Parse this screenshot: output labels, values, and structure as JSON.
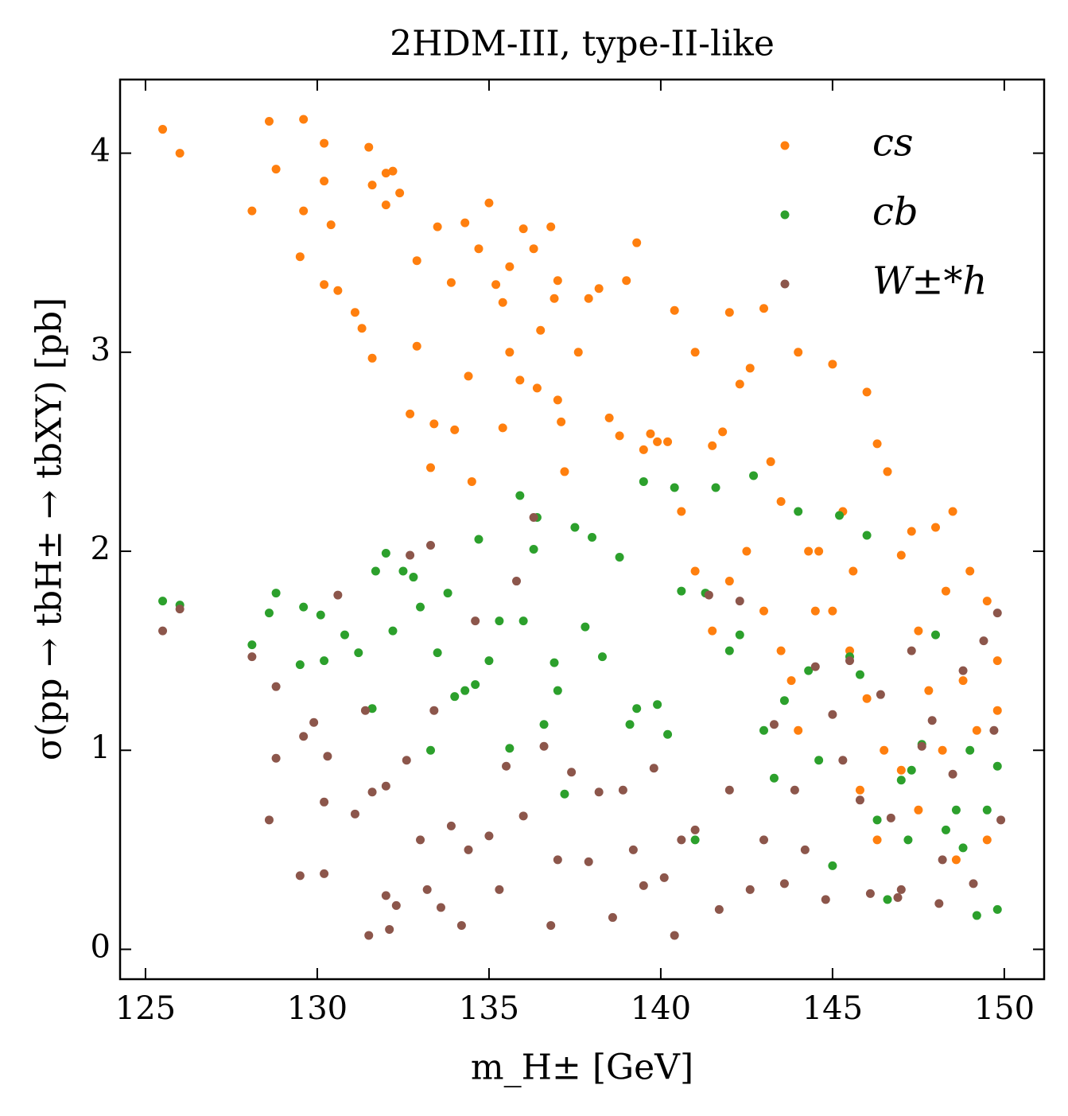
{
  "chart_data": {
    "type": "scatter",
    "title": "2HDM-III, type-II-like",
    "x_label": "m_H± [GeV]",
    "y_label": "σ(pp → tbH± → tbXY) [pb]",
    "xlim": [
      124.26,
      151.16
    ],
    "ylim": [
      -0.15,
      4.37
    ],
    "xticks": [
      125,
      130,
      135,
      140,
      145,
      150
    ],
    "yticks": [
      0,
      1,
      2,
      3,
      4
    ],
    "legend": "upper right",
    "series": [
      {
        "name": "cs",
        "color": "#ff7f0e",
        "x": [
          125.5,
          126,
          128.1,
          128.6,
          128.8,
          129.6,
          129.6,
          129.5,
          130.2,
          130.2,
          130.2,
          130.4,
          130.6,
          131.1,
          131.3,
          131.5,
          131.6,
          131.6,
          132,
          132,
          132.2,
          132.4,
          132.7,
          132.9,
          132.9,
          133.3,
          133.4,
          133.5,
          133.9,
          134,
          134.3,
          134.5,
          134.4,
          134.7,
          135,
          135.2,
          135.4,
          135.4,
          135.6,
          135.6,
          135.9,
          136,
          136.3,
          136.4,
          136.5,
          136.8,
          136.9,
          137,
          137,
          137.1,
          137.2,
          137.6,
          137.9,
          138.2,
          138.5,
          138.8,
          139,
          139.3,
          139.5,
          139.7,
          139.9,
          140.2,
          140.4,
          140.6,
          141,
          141.5,
          141.8,
          142,
          142.3,
          142.6,
          143,
          143.2,
          143.5,
          144,
          144.3,
          144.6,
          145,
          145.3,
          145.6,
          146,
          146.3,
          146.6,
          147,
          147.3,
          147.5,
          148,
          148.3,
          148.5,
          149,
          149.5,
          149.8,
          149.8,
          149.2,
          148.8,
          148.2,
          147.8,
          147,
          146.5,
          146,
          145.5,
          145,
          144.5,
          144,
          143.5,
          143,
          142.5,
          141.5,
          141,
          142,
          143.8,
          145.8,
          147.5,
          149.5,
          148.6,
          146.3
        ],
        "values": [
          4.12,
          4.0,
          3.71,
          4.16,
          3.92,
          4.17,
          3.71,
          3.48,
          3.86,
          4.05,
          3.34,
          3.64,
          3.31,
          3.2,
          3.12,
          4.03,
          2.97,
          3.84,
          3.9,
          3.74,
          3.91,
          3.8,
          2.69,
          3.46,
          3.03,
          2.42,
          2.64,
          3.63,
          3.35,
          2.61,
          3.65,
          2.35,
          2.88,
          3.52,
          3.75,
          3.34,
          3.25,
          2.62,
          3.43,
          3.0,
          2.86,
          3.62,
          3.52,
          2.82,
          3.11,
          3.63,
          3.27,
          3.36,
          2.76,
          2.65,
          2.4,
          3.0,
          3.27,
          3.32,
          2.67,
          2.58,
          3.36,
          3.55,
          2.51,
          2.59,
          2.55,
          2.55,
          3.21,
          2.2,
          3.0,
          2.53,
          2.6,
          3.2,
          2.84,
          2.92,
          3.22,
          2.45,
          2.25,
          3.0,
          2.0,
          2.0,
          2.94,
          2.2,
          1.9,
          2.8,
          2.54,
          2.4,
          1.98,
          2.1,
          1.6,
          2.12,
          1.8,
          2.2,
          1.9,
          1.75,
          1.2,
          1.45,
          1.1,
          1.35,
          1.0,
          1.3,
          0.9,
          1.0,
          1.26,
          1.5,
          1.7,
          1.7,
          1.1,
          1.5,
          1.7,
          2.0,
          1.6,
          1.9,
          1.85,
          1.35,
          0.8,
          0.7,
          0.55,
          0.45,
          0.55
        ]
      },
      {
        "name": "cb",
        "color": "#2ca02c",
        "x": [
          125.5,
          126,
          128.1,
          128.6,
          128.8,
          129.5,
          129.6,
          130.1,
          130.2,
          130.8,
          131.2,
          131.6,
          131.7,
          132,
          132.2,
          132.5,
          132.8,
          133,
          133.3,
          133.5,
          133.8,
          134,
          134.3,
          134.6,
          134.7,
          135,
          135.3,
          135.6,
          135.9,
          136,
          136.3,
          136.4,
          136.6,
          136.9,
          137,
          137.2,
          137.5,
          137.8,
          138,
          138.3,
          138.8,
          139.1,
          139.3,
          139.5,
          139.9,
          140.2,
          140.4,
          140.6,
          141,
          141.3,
          141.6,
          142,
          142.3,
          142.7,
          143,
          143.3,
          143.6,
          144,
          144.3,
          144.6,
          145,
          145.2,
          145.5,
          145.8,
          146,
          146.3,
          146.6,
          147,
          147.3,
          147.6,
          148,
          148.3,
          148.6,
          149,
          149.2,
          149.5,
          149.8,
          149.8,
          148.8,
          147.2
        ],
        "values": [
          1.75,
          1.73,
          1.53,
          1.69,
          1.79,
          1.43,
          1.72,
          1.68,
          1.45,
          1.58,
          1.49,
          1.21,
          1.9,
          1.99,
          1.6,
          1.9,
          1.87,
          1.72,
          1.0,
          1.49,
          1.79,
          1.27,
          1.3,
          1.33,
          2.06,
          1.45,
          1.65,
          1.01,
          2.28,
          1.65,
          2.01,
          2.17,
          1.13,
          1.44,
          1.3,
          0.78,
          2.12,
          1.62,
          2.07,
          1.47,
          1.97,
          1.13,
          1.21,
          2.35,
          1.23,
          1.08,
          2.32,
          1.8,
          0.55,
          1.79,
          2.32,
          1.5,
          1.58,
          2.38,
          1.1,
          0.86,
          1.25,
          2.2,
          1.4,
          0.95,
          0.42,
          2.18,
          1.47,
          1.38,
          2.08,
          0.65,
          0.25,
          0.85,
          0.9,
          1.03,
          1.58,
          0.6,
          0.7,
          1.0,
          0.17,
          0.7,
          0.2,
          0.92,
          0.51,
          0.55
        ]
      },
      {
        "name": "W±*h",
        "color": "#8c564b",
        "x": [
          125.5,
          126,
          128.1,
          128.6,
          128.8,
          128.8,
          129.5,
          129.6,
          129.9,
          130.2,
          130.2,
          130.3,
          130.6,
          131.1,
          131.4,
          131.5,
          131.6,
          132,
          132,
          132.1,
          132.3,
          132.6,
          132.7,
          133,
          133.2,
          133.3,
          133.4,
          133.6,
          133.9,
          134.2,
          134.4,
          134.6,
          135,
          135.3,
          135.5,
          135.8,
          136,
          136.3,
          136.6,
          136.8,
          137,
          137.4,
          137.9,
          138.2,
          138.6,
          138.9,
          139.2,
          139.5,
          139.8,
          140.1,
          140.4,
          140.6,
          141,
          141.4,
          141.7,
          142,
          142.3,
          142.6,
          143,
          143.3,
          143.6,
          143.9,
          144.2,
          144.5,
          144.8,
          145,
          145.3,
          145.5,
          145.8,
          146.1,
          146.4,
          146.7,
          147,
          147.3,
          147.6,
          147.9,
          148.2,
          148.5,
          148.8,
          149.1,
          149.4,
          149.7,
          149.8,
          149.9,
          146.9,
          148.1
        ],
        "values": [
          1.6,
          1.71,
          1.47,
          0.65,
          0.96,
          1.32,
          0.37,
          1.07,
          1.14,
          0.74,
          0.38,
          0.97,
          1.78,
          0.68,
          1.2,
          0.07,
          0.79,
          0.82,
          0.27,
          0.1,
          0.22,
          0.95,
          1.98,
          0.55,
          0.3,
          2.03,
          1.2,
          0.21,
          0.62,
          0.12,
          0.5,
          1.65,
          0.57,
          0.3,
          0.92,
          1.85,
          0.67,
          2.17,
          1.02,
          0.12,
          0.45,
          0.89,
          0.44,
          0.79,
          0.16,
          0.8,
          0.5,
          0.32,
          0.91,
          0.36,
          0.07,
          0.55,
          0.6,
          1.78,
          0.2,
          0.8,
          1.75,
          0.3,
          0.55,
          1.13,
          0.33,
          0.8,
          0.5,
          1.42,
          0.25,
          1.18,
          0.95,
          1.45,
          0.75,
          0.28,
          1.28,
          0.66,
          0.3,
          1.5,
          1.02,
          1.15,
          0.45,
          0.88,
          1.4,
          0.33,
          1.55,
          1.1,
          1.69,
          0.65,
          0.26,
          0.23
        ]
      }
    ]
  }
}
